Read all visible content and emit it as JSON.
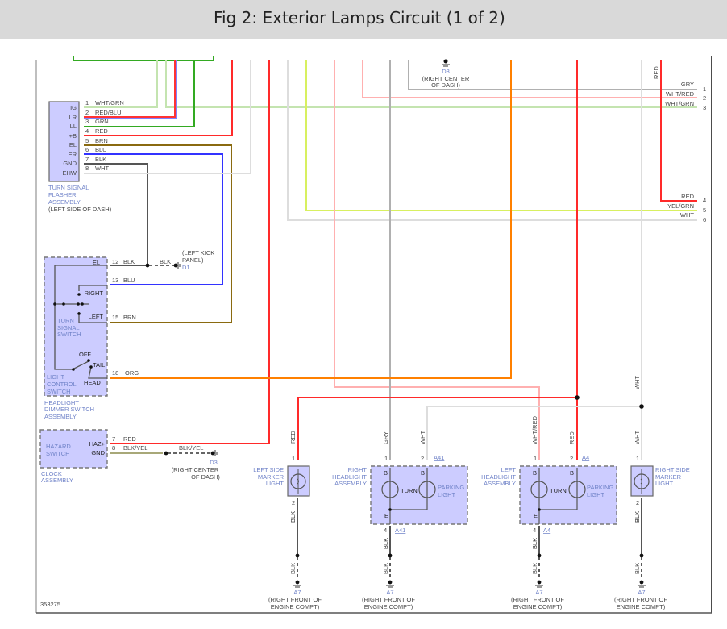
{
  "header": {
    "title": "Fig 2: Exterior Lamps Circuit (1 of 2)"
  },
  "colors": {
    "WHT/GRN": "#c4e4b0",
    "RED/BLU": "#ff3333",
    "GRN": "#33aa22",
    "RED": "#ff2a2a",
    "BRN": "#8a6a10",
    "BLU": "#3333ff",
    "BLK": "#555555",
    "WHT": "#dddddd",
    "GRY": "#b0b0b0",
    "WHT/RED": "#ffb0b0",
    "ORG": "#ff8000",
    "YEL/GRN": "#d8f060",
    "BLK/YEL": "#a8a878",
    "component_fill": "#ccccff",
    "component_label": "#6f82c8"
  },
  "flasher": {
    "pins": [
      {
        "name": "IG",
        "num": "1",
        "wire": "WHT/GRN"
      },
      {
        "name": "LR",
        "num": "2",
        "wire": "RED/BLU"
      },
      {
        "name": "LL",
        "num": "3",
        "wire": "GRN"
      },
      {
        "name": "+B",
        "num": "4",
        "wire": "RED"
      },
      {
        "name": "EL",
        "num": "5",
        "wire": "BRN"
      },
      {
        "name": "ER",
        "num": "6",
        "wire": "BLU"
      },
      {
        "name": "GND",
        "num": "7",
        "wire": "BLK"
      },
      {
        "name": "EHW",
        "num": "8",
        "wire": "WHT"
      }
    ],
    "label": [
      "TURN SIGNAL",
      "FLASHER",
      "ASSEMBLY"
    ],
    "location": "(LEFT SIDE OF DASH)"
  },
  "dimmer": {
    "el": {
      "pin": "EL",
      "num": "12",
      "wire": "BLK",
      "wire2": "BLK",
      "ground": "D1",
      "location": [
        "(LEFT KICK",
        "PANEL)"
      ]
    },
    "right": {
      "pin": "RIGHT",
      "num": "13",
      "wire": "BLU"
    },
    "left": {
      "pin": "LEFT",
      "num": "15",
      "wire": "BRN"
    },
    "turn_switch": [
      "TURN",
      "SIGNAL",
      "SWITCH"
    ],
    "positions": {
      "off": "OFF",
      "tail": "TAIL",
      "head": "HEAD"
    },
    "tail": {
      "num": "18",
      "wire": "ORG"
    },
    "light_switch": [
      "LIGHT",
      "CONTROL",
      "SWITCH"
    ],
    "label": [
      "HEADLIGHT",
      "DIMMER SWITCH",
      "ASSEMBLY"
    ]
  },
  "hazard": {
    "label": [
      "HAZARD",
      "SWITCH"
    ],
    "pins": [
      {
        "name": "HAZ+",
        "num": "7",
        "wire": "RED"
      },
      {
        "name": "GND",
        "num": "8",
        "wire": "BLK/YEL"
      }
    ],
    "wire2": "BLK/YEL",
    "ground": "D3",
    "location": [
      "(RIGHT CENTER",
      "OF DASH)"
    ],
    "assembly": [
      "CLOCK",
      "ASSEMBLY"
    ]
  },
  "top_ground": {
    "id": "D3",
    "location": [
      "(RIGHT CENTER",
      "OF DASH)"
    ],
    "red_label": "RED"
  },
  "right_connector": [
    {
      "wire": "GRY",
      "num": "1"
    },
    {
      "wire": "WHT/RED",
      "num": "2"
    },
    {
      "wire": "WHT/GRN",
      "num": "3"
    },
    {
      "wire": "RED",
      "num": "4"
    },
    {
      "wire": "YEL/GRN",
      "num": "5"
    },
    {
      "wire": "WHT",
      "num": "6"
    }
  ],
  "components": {
    "left_marker": {
      "label": [
        "LEFT SIDE",
        "MARKER",
        "LIGHT"
      ],
      "in_wire": "RED",
      "pin_in": "1",
      "pin_out": "2",
      "out_wire": "BLK",
      "gnd_wire": "BLK"
    },
    "right_headlight": {
      "label": [
        "RIGHT",
        "HEADLIGHT",
        "ASSEMBLY"
      ],
      "wire1": "GRY",
      "wire2": "WHT",
      "pin1": "1",
      "pin2": "2",
      "conn": "A41",
      "conn2": "A41",
      "b": "B",
      "e": "E",
      "turn": "TURN",
      "parking": [
        "PARKING",
        "LIGHT"
      ],
      "pin_out": "4",
      "out_wire": "BLK",
      "gnd_wire": "BLK"
    },
    "left_headlight": {
      "label": [
        "LEFT",
        "HEADLIGHT",
        "ASSEMBLY"
      ],
      "wire1": "WHT/RED",
      "wire2": "RED",
      "pin1": "1",
      "pin2": "2",
      "conn": "A4",
      "conn2": "A4",
      "b": "B",
      "e": "E",
      "turn": "TURN",
      "parking": [
        "PARKING",
        "LIGHT"
      ],
      "pin_out": "4",
      "out_wire": "BLK",
      "gnd_wire": "BLK"
    },
    "right_marker": {
      "label": [
        "RIGHT SIDE",
        "MARKER",
        "LIGHT"
      ],
      "in_wire": "WHT",
      "pin_in": "1",
      "pin_out": "2",
      "out_wire": "BLK",
      "gnd_wire": "BLK",
      "top_wire": "WHT"
    }
  },
  "grounds": {
    "id": "A7",
    "location": [
      "(RIGHT FRONT OF",
      "ENGINE COMPT)"
    ]
  },
  "footer": {
    "figure_id": "353275"
  }
}
